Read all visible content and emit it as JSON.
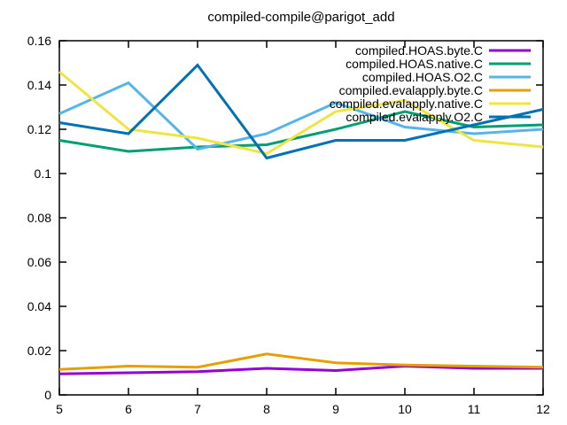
{
  "window": {
    "background": "#ffffff",
    "text_color": "#000000"
  },
  "chart_data": {
    "type": "line",
    "title": "compiled-compile@parigot_add",
    "xlabel": "",
    "ylabel": "",
    "xlim": [
      5,
      12
    ],
    "ylim": [
      0,
      0.16
    ],
    "xticks": [
      5,
      6,
      7,
      8,
      9,
      10,
      11,
      12
    ],
    "xtick_labels": [
      "5",
      "6",
      "7",
      "8",
      "9",
      "10",
      "11",
      "12"
    ],
    "yticks": [
      0,
      0.02,
      0.04,
      0.06,
      0.08,
      0.1,
      0.12,
      0.14,
      0.16
    ],
    "ytick_labels": [
      "0",
      "0.02",
      "0.04",
      "0.06",
      "0.08",
      "0.1",
      "0.12",
      "0.14",
      "0.16"
    ],
    "grid": false,
    "legend_position": "top-right-inside",
    "border_box": true,
    "x": [
      5,
      6,
      7,
      8,
      9,
      10,
      11,
      12
    ],
    "series": [
      {
        "name": "compiled.HOAS.byte.C",
        "color": "#9400d3",
        "values": [
          0.0095,
          0.01,
          0.0105,
          0.012,
          0.011,
          0.013,
          0.012,
          0.012
        ]
      },
      {
        "name": "compiled.HOAS.native.C",
        "color": "#009e73",
        "values": [
          0.115,
          0.11,
          0.112,
          0.113,
          0.12,
          0.128,
          0.121,
          0.122
        ]
      },
      {
        "name": "compiled.HOAS.O2.C",
        "color": "#56b4e9",
        "values": [
          0.127,
          0.141,
          0.111,
          0.118,
          0.132,
          0.121,
          0.118,
          0.12
        ]
      },
      {
        "name": "compiled.evalapply.byte.C",
        "color": "#e69f00",
        "values": [
          0.0115,
          0.013,
          0.0125,
          0.0185,
          0.0145,
          0.0135,
          0.013,
          0.0125
        ]
      },
      {
        "name": "compiled.evalapply.native.C",
        "color": "#f0e442",
        "values": [
          0.146,
          0.12,
          0.116,
          0.109,
          0.128,
          0.133,
          0.115,
          0.112
        ]
      },
      {
        "name": "compiled.evalapply.O2.C",
        "color": "#0072b2",
        "values": [
          0.123,
          0.118,
          0.149,
          0.107,
          0.115,
          0.115,
          0.122,
          0.129
        ]
      }
    ]
  }
}
